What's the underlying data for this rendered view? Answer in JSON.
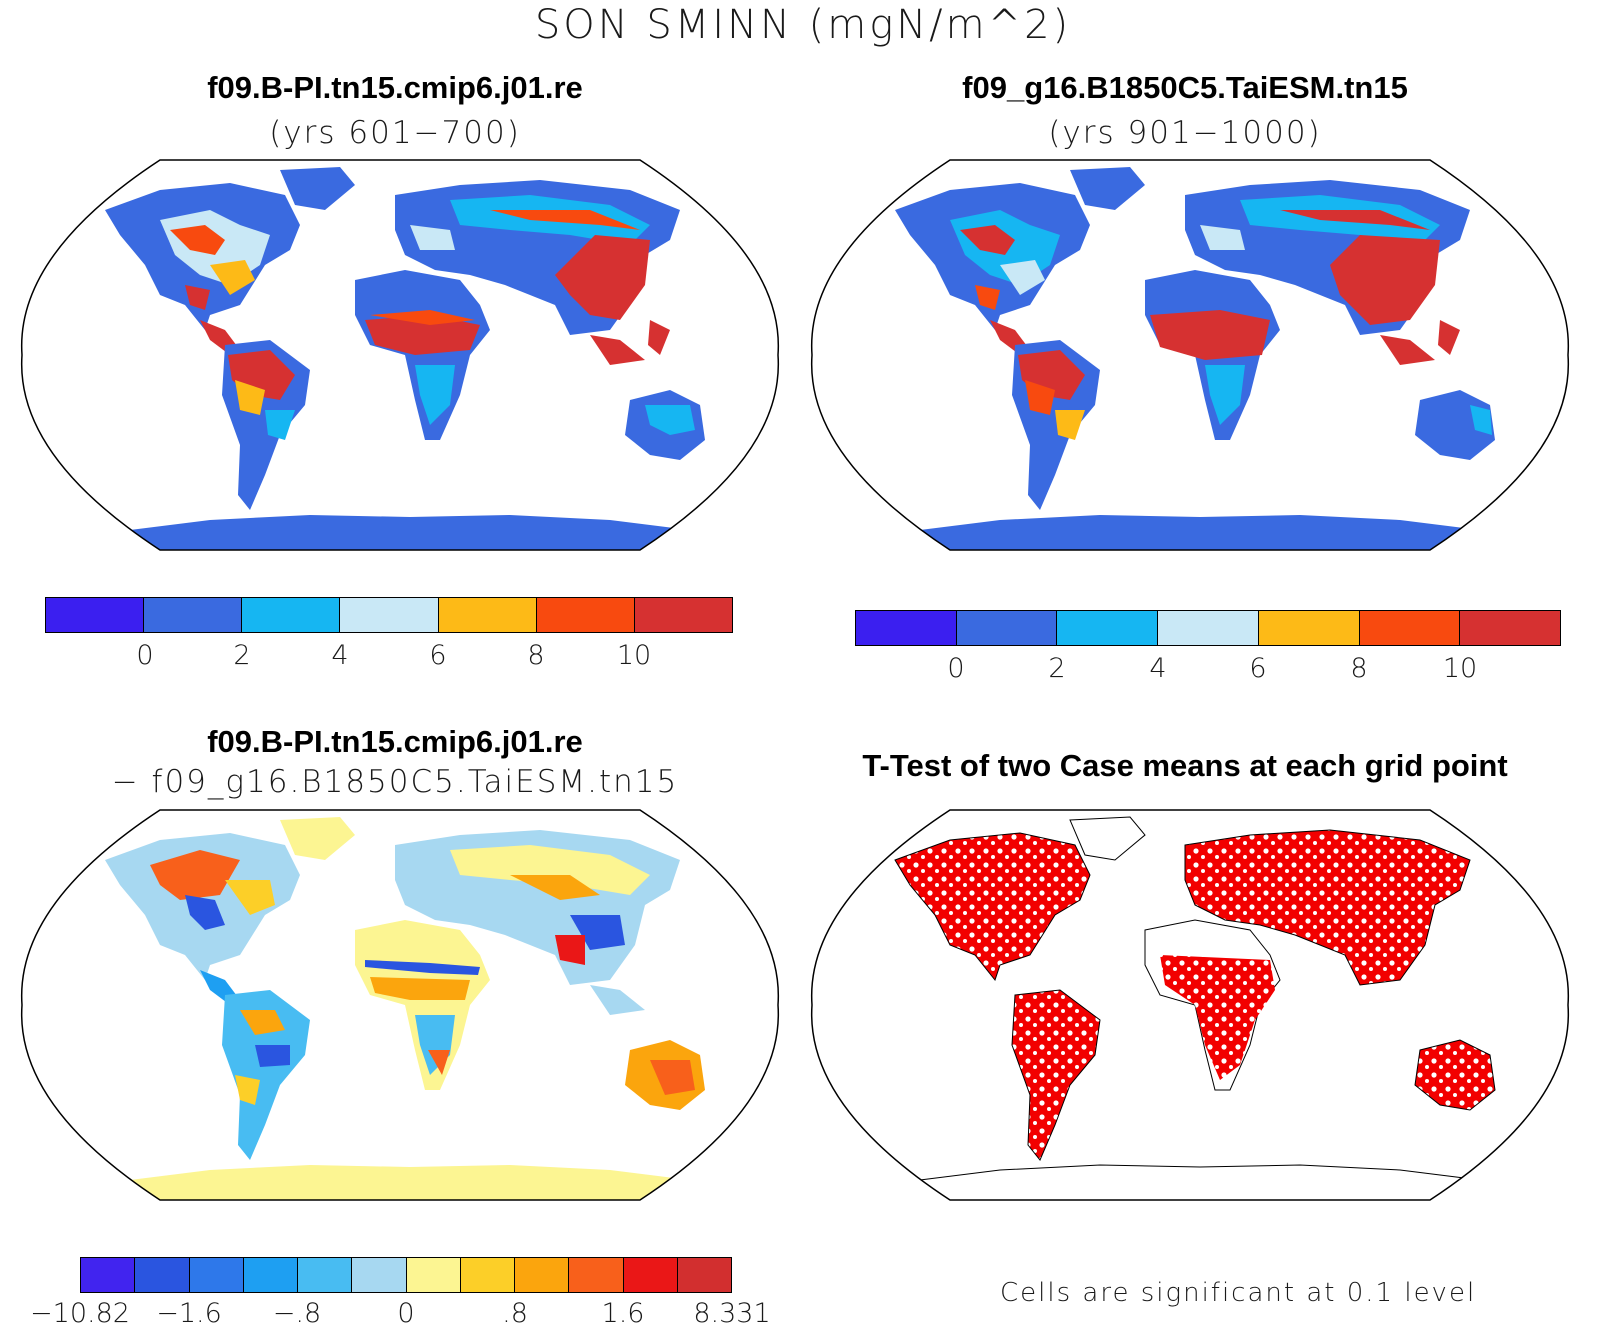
{
  "main_title": "SON SMINN (mgN/m^2)",
  "panels": {
    "top_left": {
      "title": "f09.B-PI.tn15.cmip6.j01.re",
      "subtitle": "(yrs 601−700)"
    },
    "top_right": {
      "title": "f09_g16.B1850C5.TaiESM.tn15",
      "subtitle": "(yrs 901−1000)"
    },
    "bottom_left": {
      "title": "f09.B-PI.tn15.cmip6.j01.re",
      "subtitle": "− f09_g16.B1850C5.TaiESM.tn15"
    },
    "bottom_right": {
      "title": "T-Test of two Case means at each grid point",
      "note": "Cells are significant at 0.1 level"
    }
  },
  "colorbars": {
    "abs": {
      "colors": [
        "#3b1ff0",
        "#3a6ae0",
        "#16b6f2",
        "#c9e8f6",
        "#fdba17",
        "#f84a0f",
        "#d63131"
      ],
      "labels": [
        "0",
        "2",
        "4",
        "6",
        "8",
        "10"
      ]
    },
    "diff": {
      "colors": [
        "#4124ef",
        "#2a55e0",
        "#2e78ea",
        "#1e9ff2",
        "#48bcf2",
        "#a7d8f1",
        "#fcf592",
        "#fccf28",
        "#fba50d",
        "#f8601b",
        "#ea1717",
        "#d22f2f"
      ],
      "labels": [
        "−10.82",
        "−1.6",
        "−.8",
        "0",
        ".8",
        "1.6",
        "8.331"
      ]
    }
  },
  "legend_colors": {
    "land_default": "#3a6ae0",
    "diff_default": "#fcf592",
    "significant": "#f20000"
  }
}
